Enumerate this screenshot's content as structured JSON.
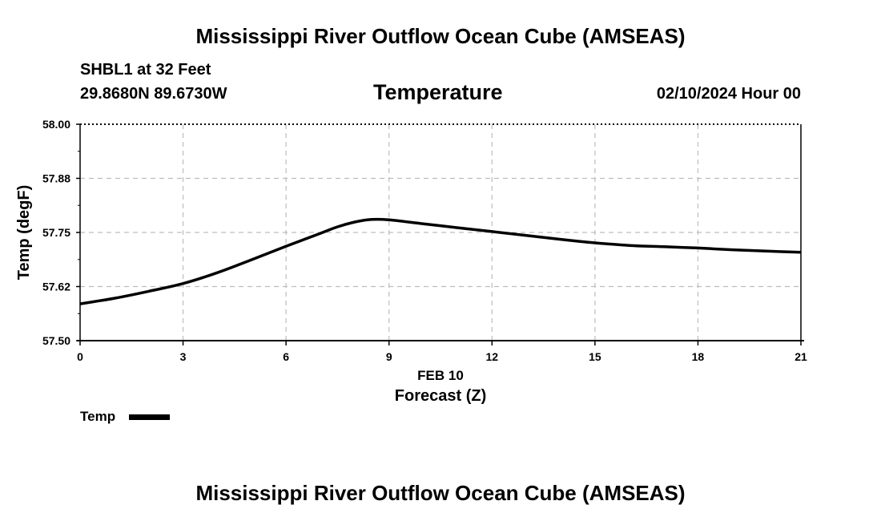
{
  "header": {
    "title": "Mississippi River Outflow Ocean Cube (AMSEAS)",
    "station": "SHBL1 at 32 Feet",
    "coords": "29.8680N  89.6730W",
    "parameter": "Temperature",
    "datetime": "02/10/2024 Hour 00"
  },
  "footer": {
    "title": "Mississippi River Outflow Ocean Cube (AMSEAS)"
  },
  "chart_data": {
    "type": "line",
    "title": "Temperature",
    "xlabel": "Forecast (Z)",
    "xlabel_date": "FEB 10",
    "ylabel": "Temp (degF)",
    "xlim": [
      0,
      21
    ],
    "ylim": [
      57.5,
      58.0
    ],
    "x_ticks": [
      0,
      3,
      6,
      9,
      12,
      15,
      18,
      21
    ],
    "y_ticks": [
      57.5,
      57.625,
      57.75,
      57.875,
      58.0
    ],
    "y_tick_labels": [
      "57.50",
      "57.62",
      "57.75",
      "57.88",
      "58.00"
    ],
    "grid": true,
    "legend": "bottom-left",
    "series": [
      {
        "name": "Temp",
        "color": "#000000",
        "x": [
          0,
          1,
          2,
          3,
          4,
          5,
          6,
          7,
          7.5,
          8,
          8.5,
          9,
          10,
          11,
          12,
          13,
          14,
          15,
          16,
          17,
          18,
          19,
          20,
          21
        ],
        "y": [
          57.585,
          57.598,
          57.614,
          57.632,
          57.657,
          57.687,
          57.718,
          57.748,
          57.763,
          57.774,
          57.78,
          57.779,
          57.77,
          57.761,
          57.752,
          57.743,
          57.734,
          57.726,
          57.72,
          57.717,
          57.714,
          57.71,
          57.707,
          57.704
        ]
      }
    ]
  }
}
